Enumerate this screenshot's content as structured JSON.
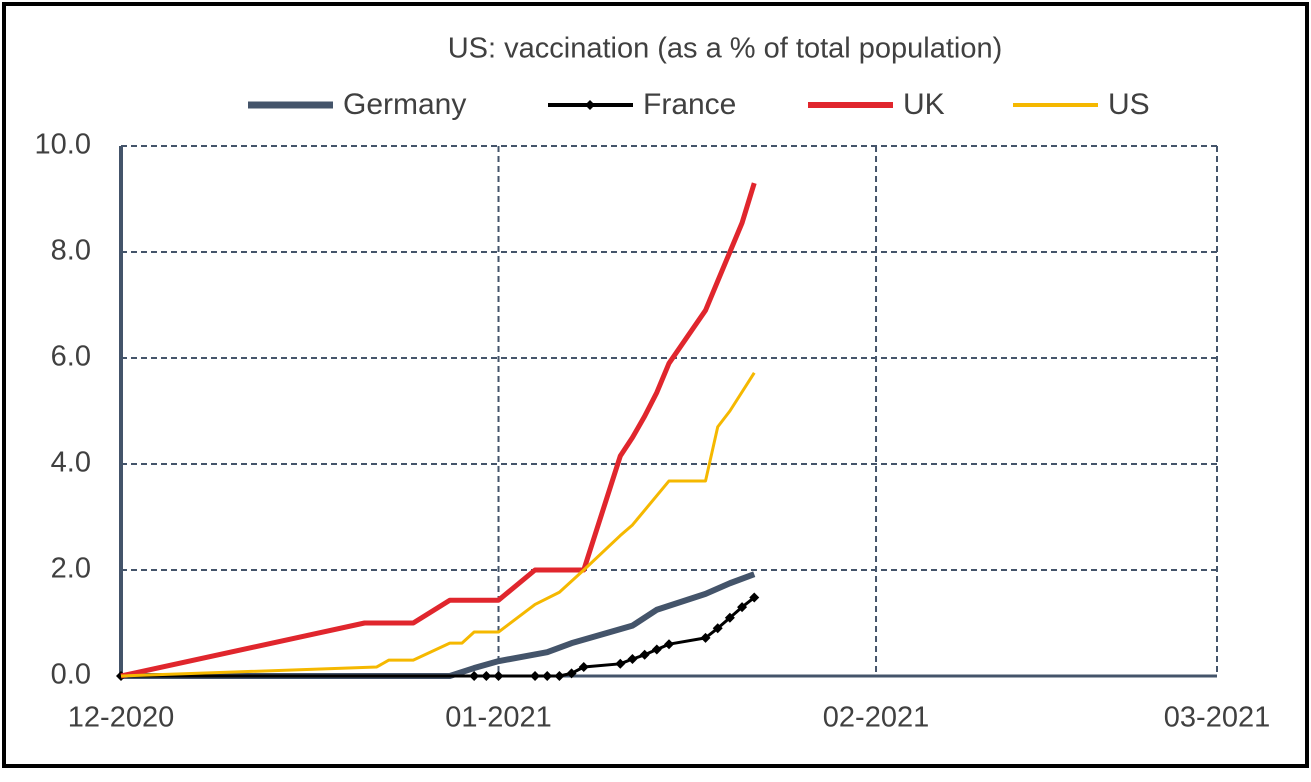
{
  "chart_data": {
    "type": "line",
    "title": "US: vaccination (as a % of total population)",
    "xlim": [
      0,
      90
    ],
    "xticks": [
      {
        "value": 0,
        "label": "12-2020"
      },
      {
        "value": 31,
        "label": "01-2021"
      },
      {
        "value": 62,
        "label": "02-2021"
      },
      {
        "value": 90,
        "label": "03-2021"
      }
    ],
    "ylim": [
      0,
      10
    ],
    "yticks": [
      {
        "value": 0,
        "label": "0.0"
      },
      {
        "value": 2,
        "label": "2.0"
      },
      {
        "value": 4,
        "label": "4.0"
      },
      {
        "value": 6,
        "label": "6.0"
      },
      {
        "value": 8,
        "label": "8.0"
      },
      {
        "value": 10,
        "label": "10.0"
      }
    ],
    "grid": true,
    "legend": "top",
    "series": [
      {
        "name": "Germany",
        "color": "#44546a",
        "width": 6,
        "x": [
          0,
          27,
          29,
          31,
          35,
          37,
          42,
          44,
          48,
          50,
          52
        ],
        "values": [
          0,
          0,
          0.15,
          0.28,
          0.45,
          0.62,
          0.95,
          1.25,
          1.55,
          1.75,
          1.92
        ]
      },
      {
        "name": "France",
        "color": "#000000",
        "width": 3,
        "marker": "diamond",
        "x": [
          0,
          29,
          30,
          31,
          34,
          35,
          36,
          37,
          38,
          41,
          42,
          43,
          44,
          45,
          48,
          49,
          50,
          51,
          52
        ],
        "values": [
          0,
          0,
          0,
          0,
          0,
          0,
          0,
          0.05,
          0.17,
          0.23,
          0.32,
          0.4,
          0.5,
          0.6,
          0.72,
          0.9,
          1.1,
          1.3,
          1.48
        ]
      },
      {
        "name": "UK",
        "color": "#e0262d",
        "width": 5,
        "x": [
          0,
          20,
          24,
          27,
          31,
          34,
          38,
          41,
          42,
          43,
          44,
          45,
          48,
          49,
          50,
          51,
          52
        ],
        "values": [
          0,
          1.0,
          1.0,
          1.43,
          1.43,
          2.0,
          2.0,
          4.15,
          4.5,
          4.9,
          5.35,
          5.9,
          6.9,
          7.45,
          8.0,
          8.55,
          9.3
        ]
      },
      {
        "name": "US",
        "color": "#f5b800",
        "width": 3,
        "x": [
          0,
          21,
          22,
          24,
          27,
          28,
          29,
          31,
          34,
          36,
          38,
          41,
          42,
          45,
          48,
          49,
          50,
          52
        ],
        "values": [
          0,
          0.17,
          0.3,
          0.3,
          0.62,
          0.62,
          0.83,
          0.83,
          1.35,
          1.58,
          2.0,
          2.65,
          2.85,
          3.68,
          3.68,
          4.7,
          5.0,
          5.72
        ]
      }
    ]
  }
}
